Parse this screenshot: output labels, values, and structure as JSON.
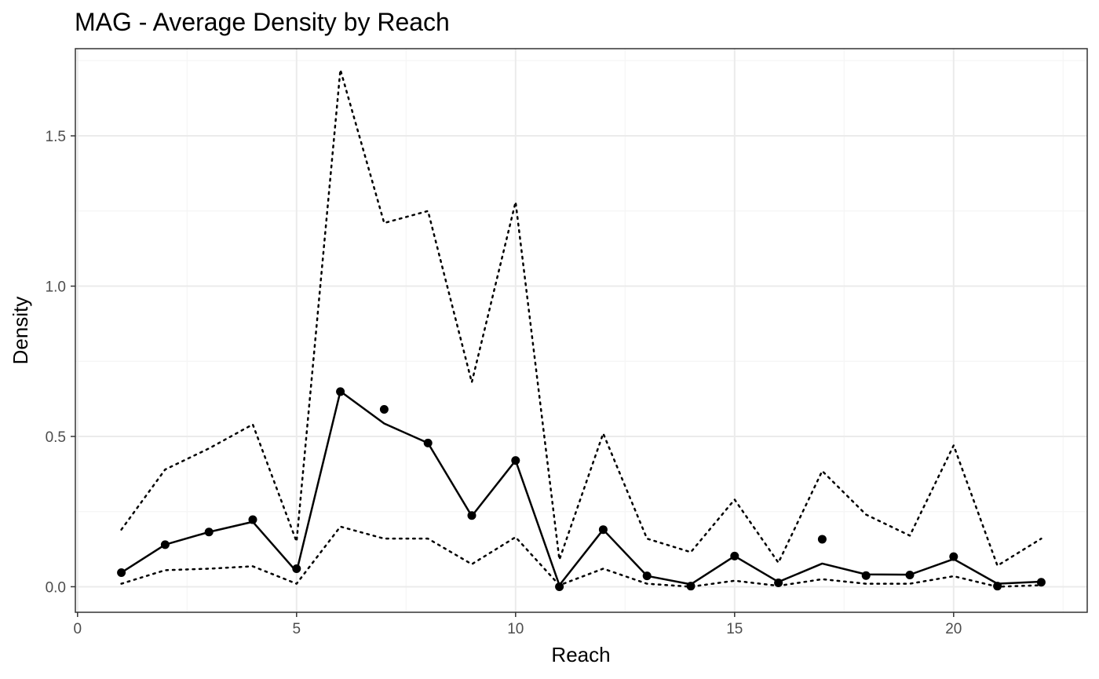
{
  "chart_data": {
    "type": "line",
    "title": "MAG - Average Density by Reach",
    "xlabel": "Reach",
    "ylabel": "Density",
    "xlim": [
      -0.05,
      23.05
    ],
    "ylim": [
      -0.085,
      1.79
    ],
    "x_ticks": [
      0,
      5,
      10,
      15,
      20
    ],
    "y_ticks": [
      0.0,
      0.5,
      1.0,
      1.5
    ],
    "x_tick_labels": [
      "0",
      "5",
      "10",
      "15",
      "20"
    ],
    "y_tick_labels": [
      "0.0",
      "0.5",
      "1.0",
      "1.5"
    ],
    "grid": true,
    "legend": "none",
    "x": [
      1,
      2,
      3,
      4,
      5,
      6,
      7,
      8,
      9,
      10,
      11,
      12,
      13,
      14,
      15,
      16,
      17,
      18,
      19,
      20,
      21,
      22
    ],
    "points": [
      0.047,
      0.14,
      0.182,
      0.223,
      0.06,
      0.649,
      0.59,
      0.478,
      0.237,
      0.42,
      0.0,
      0.19,
      0.036,
      0.002,
      0.102,
      0.013,
      0.158,
      0.037,
      0.039,
      0.1,
      0.002,
      0.015
    ],
    "series": [
      {
        "values": [
          0.047,
          0.14,
          0.182,
          0.216,
          0.05,
          0.65,
          0.543,
          0.478,
          0.235,
          0.42,
          0.005,
          0.19,
          0.036,
          0.008,
          0.102,
          0.016,
          0.077,
          0.041,
          0.04,
          0.092,
          0.01,
          0.017
        ],
        "style": "solid"
      },
      {
        "values": [
          0.19,
          0.39,
          0.46,
          0.54,
          0.15,
          1.72,
          1.21,
          1.25,
          0.68,
          1.28,
          0.09,
          0.51,
          0.16,
          0.115,
          0.29,
          0.08,
          0.385,
          0.24,
          0.17,
          0.47,
          0.07,
          0.16
        ],
        "style": "dotted"
      },
      {
        "values": [
          0.01,
          0.055,
          0.06,
          0.068,
          0.01,
          0.2,
          0.16,
          0.16,
          0.075,
          0.165,
          0.005,
          0.06,
          0.01,
          0.0,
          0.02,
          0.003,
          0.025,
          0.01,
          0.01,
          0.035,
          0.0,
          0.005
        ],
        "style": "dotted"
      }
    ],
    "colors": {
      "line": "#000000",
      "grid_major": "#ebebeb",
      "grid_minor": "#f5f5f5",
      "panel_border": "#333333",
      "tick_text": "#4d4d4d"
    }
  }
}
